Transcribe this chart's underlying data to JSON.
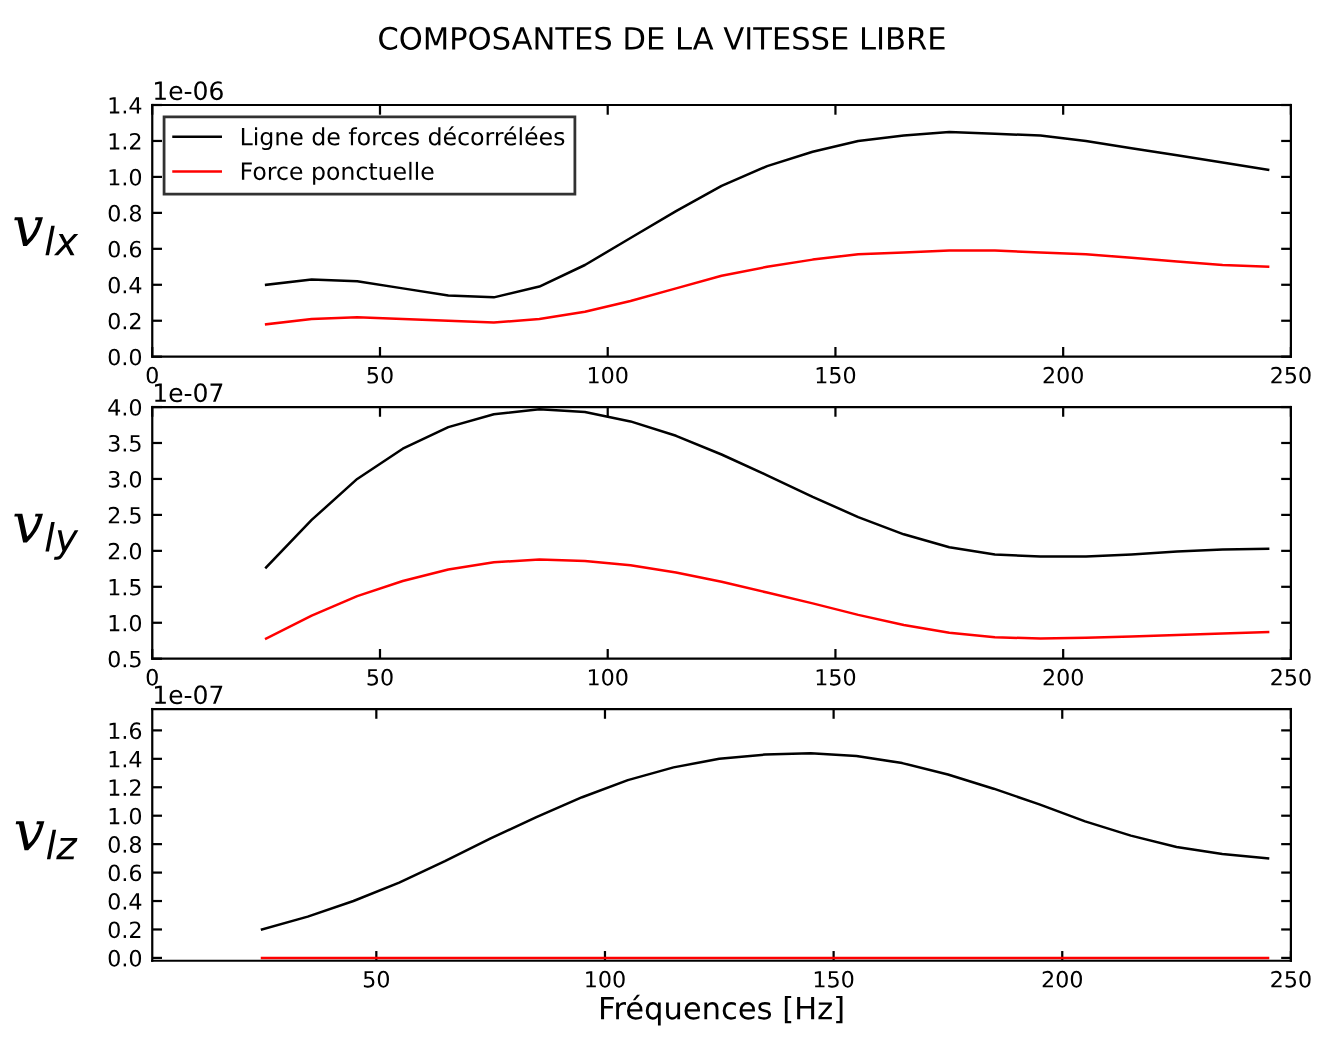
{
  "chart_data": [
    {
      "type": "line",
      "title": "COMPOSANTES DE LA VITESSE LIBRE",
      "ylabel": "v$_{lx}$",
      "annotations": [
        "1e-06"
      ],
      "x": [
        25,
        35,
        45,
        55,
        65,
        75,
        85,
        95,
        105,
        115,
        125,
        135,
        145,
        155,
        165,
        175,
        185,
        195,
        205,
        215,
        225,
        235,
        245
      ],
      "series": [
        {
          "name": "Ligne de forces décorrélées",
          "color": "#000000",
          "values": [
            0.4,
            0.43,
            0.42,
            0.38,
            0.34,
            0.33,
            0.39,
            0.51,
            0.66,
            0.81,
            0.95,
            1.06,
            1.14,
            1.2,
            1.23,
            1.25,
            1.24,
            1.23,
            1.2,
            1.16,
            1.12,
            1.08,
            1.04
          ]
        },
        {
          "name": "Force ponctuelle",
          "color": "#ff0000",
          "values": [
            0.18,
            0.21,
            0.22,
            0.21,
            0.2,
            0.19,
            0.21,
            0.25,
            0.31,
            0.38,
            0.45,
            0.5,
            0.54,
            0.57,
            0.58,
            0.59,
            0.59,
            0.58,
            0.57,
            0.55,
            0.53,
            0.51,
            0.5
          ]
        }
      ],
      "xlim": [
        0,
        250
      ],
      "xticks": [
        0,
        50,
        100,
        150,
        200,
        250
      ],
      "ylim": [
        0,
        1.4
      ],
      "yticks": [
        {
          "value": 0,
          "label": "0.0"
        },
        0.2,
        0.4,
        0.6,
        0.8,
        {
          "value": 1,
          "label": "1.0"
        },
        1.2,
        1.4
      ],
      "legend": "top left",
      "grid": false,
      "marker": "none",
      "line_style": "solid"
    },
    {
      "type": "line",
      "ylabel": "v$_{ly}$",
      "annotations": [
        "1e-07"
      ],
      "x": [
        25,
        35,
        45,
        55,
        65,
        75,
        85,
        95,
        105,
        115,
        125,
        135,
        145,
        155,
        165,
        175,
        185,
        195,
        205,
        215,
        225,
        235,
        245
      ],
      "series": [
        {
          "color": "#000000",
          "values": [
            1.77,
            2.43,
            3.0,
            3.42,
            3.72,
            3.9,
            3.97,
            3.93,
            3.8,
            3.6,
            3.34,
            3.05,
            2.75,
            2.47,
            2.23,
            2.05,
            1.95,
            1.92,
            1.92,
            1.95,
            1.99,
            2.02,
            2.03
          ]
        },
        {
          "color": "#ff0000",
          "values": [
            0.78,
            1.1,
            1.37,
            1.58,
            1.74,
            1.84,
            1.88,
            1.86,
            1.8,
            1.7,
            1.57,
            1.42,
            1.27,
            1.11,
            0.97,
            0.86,
            0.8,
            0.78,
            0.79,
            0.81,
            0.83,
            0.85,
            0.87
          ]
        }
      ],
      "xlim": [
        0,
        250
      ],
      "xticks": [
        0,
        50,
        100,
        150,
        200,
        250
      ],
      "ylim": [
        0.5,
        4.0
      ],
      "yticks": [
        0.5,
        {
          "value": 1,
          "label": "1.0"
        },
        1.5,
        {
          "value": 2,
          "label": "2.0"
        },
        2.5,
        {
          "value": 3,
          "label": "3.0"
        },
        3.5,
        {
          "value": 4,
          "label": "4.0"
        }
      ],
      "legend": false,
      "grid": false,
      "marker": "none",
      "line_style": "solid"
    },
    {
      "type": "line",
      "ylabel": "v$_{lz}$",
      "xlabel": "Fréquences [Hz]",
      "annotations": [
        "1e-07"
      ],
      "x": [
        25,
        35,
        45,
        55,
        65,
        75,
        85,
        95,
        105,
        115,
        125,
        135,
        145,
        155,
        165,
        175,
        185,
        195,
        205,
        215,
        225,
        235,
        245
      ],
      "series": [
        {
          "color": "#000000",
          "values": [
            0.2,
            0.29,
            0.4,
            0.53,
            0.68,
            0.84,
            0.99,
            1.13,
            1.25,
            1.34,
            1.4,
            1.43,
            1.44,
            1.42,
            1.37,
            1.29,
            1.19,
            1.08,
            0.96,
            0.86,
            0.78,
            0.73,
            0.7
          ]
        },
        {
          "color": "#ff0000",
          "values": [
            0,
            0,
            0,
            0,
            0,
            0,
            0,
            0,
            0,
            0,
            0,
            0,
            0,
            0,
            0,
            0,
            0,
            0,
            0,
            0,
            0,
            0,
            0
          ]
        }
      ],
      "xlim": [
        1,
        250
      ],
      "xticks": [
        50,
        100,
        150,
        200,
        250
      ],
      "ylim": [
        -0.02,
        1.75
      ],
      "yticks": [
        {
          "value": 0,
          "label": "0.0"
        },
        0.2,
        0.4,
        0.6,
        0.8,
        {
          "value": 1,
          "label": "1.0"
        },
        1.2,
        1.4,
        1.6
      ],
      "legend": false,
      "grid": false,
      "marker": "none",
      "line_style": "solid"
    }
  ]
}
